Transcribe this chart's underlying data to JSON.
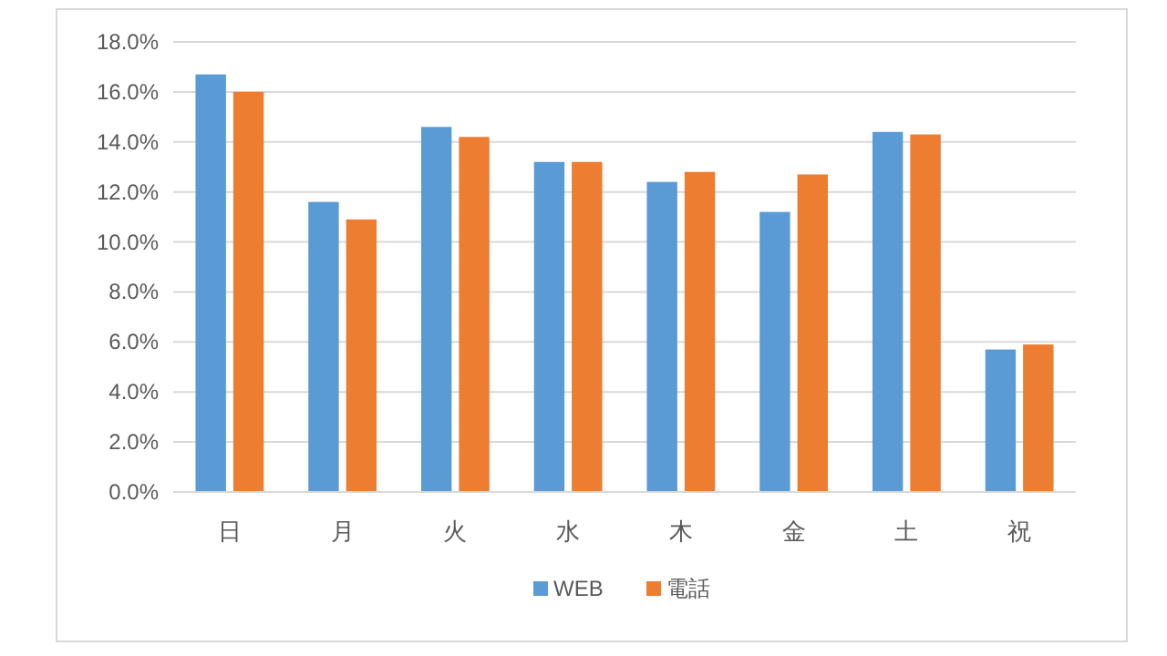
{
  "chart_data": {
    "type": "bar",
    "categories": [
      "日",
      "月",
      "火",
      "水",
      "木",
      "金",
      "土",
      "祝"
    ],
    "series": [
      {
        "name": "WEB",
        "color": "#5b9bd5",
        "values": [
          16.7,
          11.6,
          14.6,
          13.2,
          12.4,
          11.2,
          14.4,
          5.7
        ]
      },
      {
        "name": "電話",
        "color": "#ed7d31",
        "values": [
          16.0,
          10.9,
          14.2,
          13.2,
          12.8,
          12.7,
          14.3,
          5.9
        ]
      }
    ],
    "ylim": [
      0,
      18
    ],
    "yticks": [
      {
        "value": 0,
        "label": "0.0%"
      },
      {
        "value": 2,
        "label": "2.0%"
      },
      {
        "value": 4,
        "label": "4.0%"
      },
      {
        "value": 6,
        "label": "6.0%"
      },
      {
        "value": 8,
        "label": "8.0%"
      },
      {
        "value": 10,
        "label": "10.0%"
      },
      {
        "value": 12,
        "label": "12.0%"
      },
      {
        "value": 14,
        "label": "14.0%"
      },
      {
        "value": 16,
        "label": "16.0%"
      },
      {
        "value": 18,
        "label": "18.0%"
      }
    ],
    "grid": "y",
    "legend": "bottom"
  }
}
